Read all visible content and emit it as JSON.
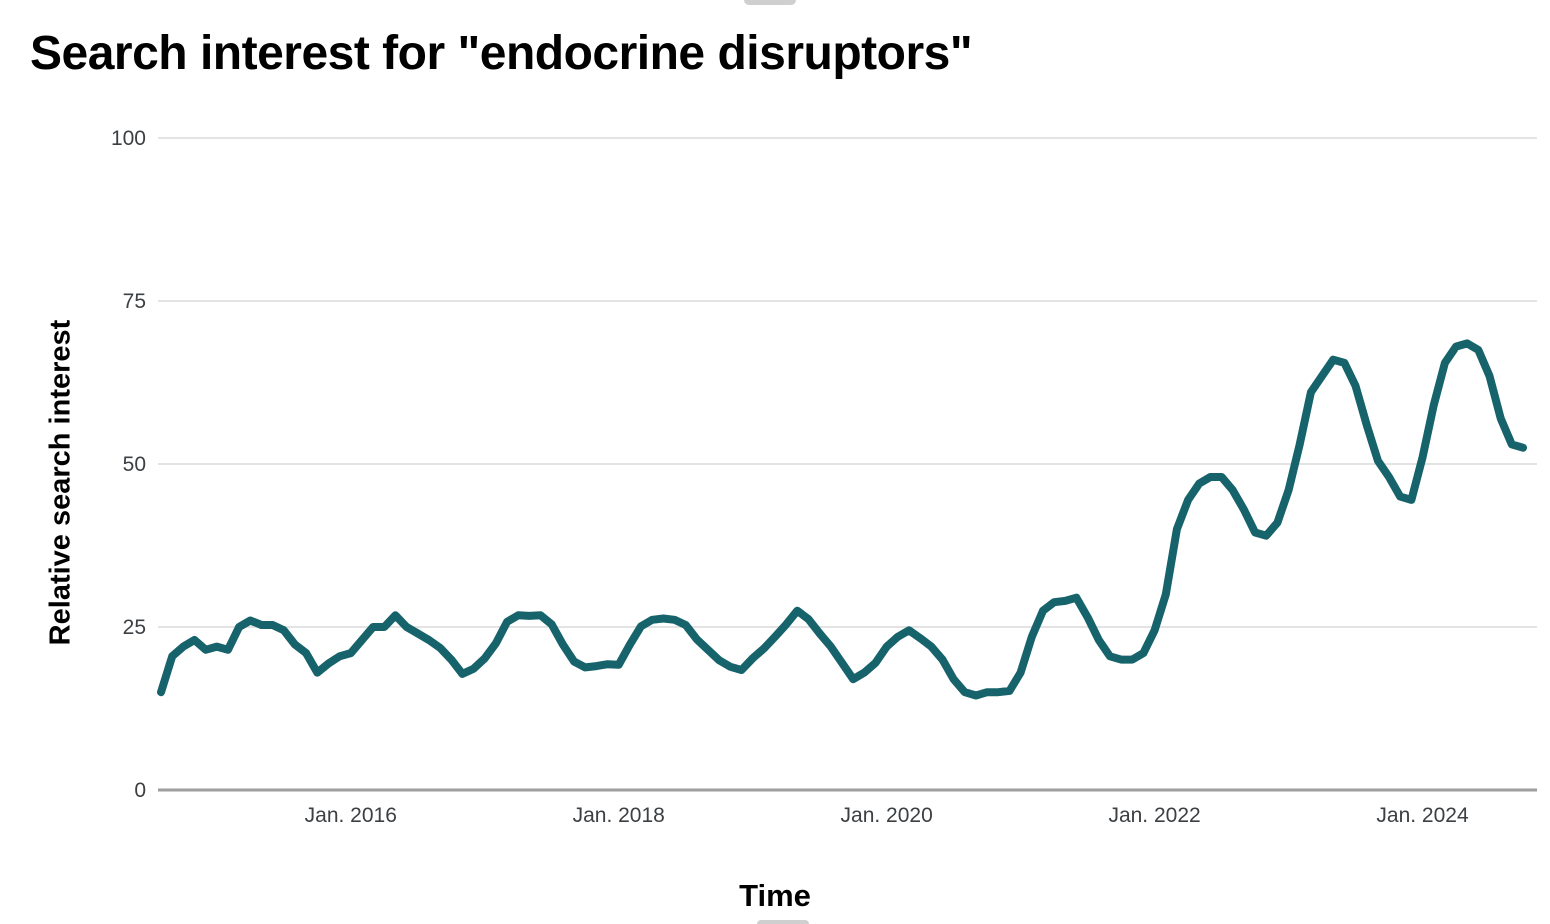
{
  "page": {
    "background": "#ffffff",
    "artifact_color": "#cfcfcf"
  },
  "chart": {
    "title": "Search interest for \"endocrine disruptors\"",
    "x_axis_title": "Time",
    "y_axis_title": "Relative search interest"
  },
  "chart_data": {
    "type": "line",
    "title": "Search interest for \"endocrine disruptors\"",
    "xlabel": "Time",
    "ylabel": "Relative search interest",
    "ylim": [
      0,
      100
    ],
    "y_ticks": [
      0,
      25,
      50,
      75,
      100
    ],
    "grid": "horizontal",
    "legend": "none",
    "line_color": "#17636b",
    "grid_color": "#e3e3e3",
    "baseline_color": "#9e9e9e",
    "tick_label_color": "#3c4043",
    "x_tick_labels": [
      "Jan. 2016",
      "Jan. 2018",
      "Jan. 2020",
      "Jan. 2022",
      "Jan. 2024"
    ],
    "x_tick_month_indices": [
      17,
      41,
      65,
      89,
      113
    ],
    "series": [
      {
        "name": "Relative search interest",
        "frequency": "monthly",
        "values": [
          15,
          20.5,
          22,
          23,
          21.5,
          22,
          21.5,
          25,
          26,
          25.3,
          25.3,
          24.5,
          22.3,
          21,
          18,
          19.4,
          20.5,
          21,
          23,
          25,
          25,
          26.8,
          25,
          24,
          23,
          21.8,
          20,
          17.8,
          18.6,
          20.2,
          22.5,
          25.8,
          26.8,
          26.7,
          26.8,
          25.4,
          22.3,
          19.7,
          18.8,
          19,
          19.3,
          19.2,
          22.3,
          25.1,
          26.1,
          26.3,
          26.1,
          25.3,
          23.1,
          21.5,
          19.9,
          18.9,
          18.4,
          20.2,
          21.7,
          23.5,
          25.4,
          27.5,
          26.2,
          24,
          22,
          19.5,
          17,
          18,
          19.5,
          22,
          23.5,
          24.5,
          23.3,
          22,
          20,
          17,
          15,
          14.5,
          15,
          15,
          15.2,
          18,
          23.5,
          27.5,
          28.8,
          29,
          29.5,
          26.5,
          23,
          20.5,
          20,
          20,
          21,
          24.5,
          30,
          40,
          44.5,
          47,
          48,
          48,
          46,
          43,
          39.5,
          39,
          41,
          46,
          53,
          61,
          63.5,
          66,
          65.5,
          62,
          56,
          50.5,
          48,
          45,
          44.5,
          51,
          59,
          65.5,
          68,
          68.5,
          67.5,
          63.5,
          57,
          53,
          52.5
        ]
      }
    ]
  }
}
